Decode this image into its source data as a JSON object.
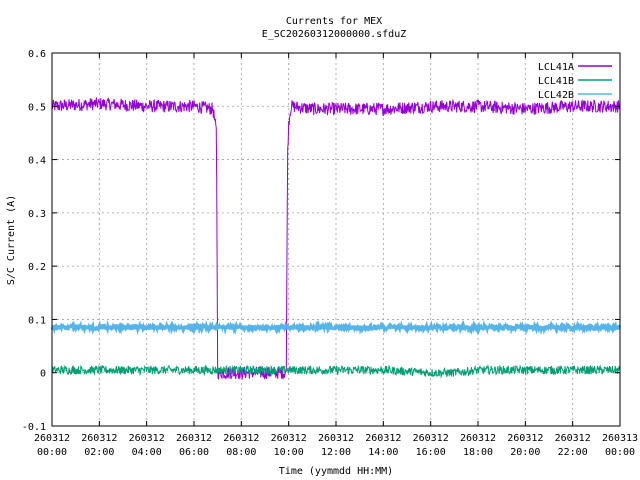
{
  "chart_data": {
    "type": "line",
    "title": "Currents for MEX",
    "subtitle": "E_SC20260312000000.sfduZ",
    "xlabel": "Time (yymmdd HH:MM)",
    "ylabel": "S/C Current (A)",
    "ylim": [
      -0.1,
      0.6
    ],
    "yticks": [
      "-0.1",
      "0",
      "0.1",
      "0.2",
      "0.3",
      "0.4",
      "0.5",
      "0.6"
    ],
    "xlim_hours": [
      0,
      24
    ],
    "xticks": [
      {
        "hours": 0,
        "date": "260312",
        "time": "00:00"
      },
      {
        "hours": 2,
        "date": "260312",
        "time": "02:00"
      },
      {
        "hours": 4,
        "date": "260312",
        "time": "04:00"
      },
      {
        "hours": 6,
        "date": "260312",
        "time": "06:00"
      },
      {
        "hours": 8,
        "date": "260312",
        "time": "08:00"
      },
      {
        "hours": 10,
        "date": "260312",
        "time": "10:00"
      },
      {
        "hours": 12,
        "date": "260312",
        "time": "12:00"
      },
      {
        "hours": 14,
        "date": "260312",
        "time": "14:00"
      },
      {
        "hours": 16,
        "date": "260312",
        "time": "16:00"
      },
      {
        "hours": 18,
        "date": "260312",
        "time": "18:00"
      },
      {
        "hours": 20,
        "date": "260312",
        "time": "20:00"
      },
      {
        "hours": 22,
        "date": "260312",
        "time": "22:00"
      },
      {
        "hours": 24,
        "date": "260313",
        "time": "00:00"
      }
    ],
    "grid": true,
    "legend_position": "top-right",
    "series": [
      {
        "name": "LCL41A",
        "color": "#9400d3",
        "x": [
          0,
          2,
          4,
          6,
          6.8,
          6.95,
          7.0,
          7.05,
          8,
          9,
          9.9,
          9.95,
          10.0,
          10.1,
          11,
          12,
          14,
          16,
          18,
          20,
          22,
          24
        ],
        "y": [
          0.5,
          0.505,
          0.5,
          0.5,
          0.495,
          0.45,
          0.0,
          0.0,
          0.0,
          0.0,
          0.0,
          0.4,
          0.47,
          0.5,
          0.495,
          0.495,
          0.495,
          0.5,
          0.5,
          0.495,
          0.5,
          0.5
        ]
      },
      {
        "name": "LCL41B",
        "color": "#009e73",
        "x": [
          0,
          2,
          4,
          6,
          7,
          8,
          10,
          12,
          14,
          16,
          17,
          18,
          20,
          22,
          24
        ],
        "y": [
          0.005,
          0.005,
          0.005,
          0.005,
          0.005,
          0.005,
          0.005,
          0.005,
          0.005,
          0.0,
          0.0,
          0.005,
          0.005,
          0.005,
          0.005
        ]
      },
      {
        "name": "LCL42B",
        "color": "#56b4e9",
        "x": [
          0,
          2,
          4,
          6,
          8,
          10,
          12,
          14,
          16,
          18,
          20,
          22,
          24
        ],
        "y": [
          0.085,
          0.085,
          0.085,
          0.085,
          0.085,
          0.085,
          0.085,
          0.085,
          0.085,
          0.085,
          0.085,
          0.085,
          0.085
        ]
      }
    ]
  }
}
